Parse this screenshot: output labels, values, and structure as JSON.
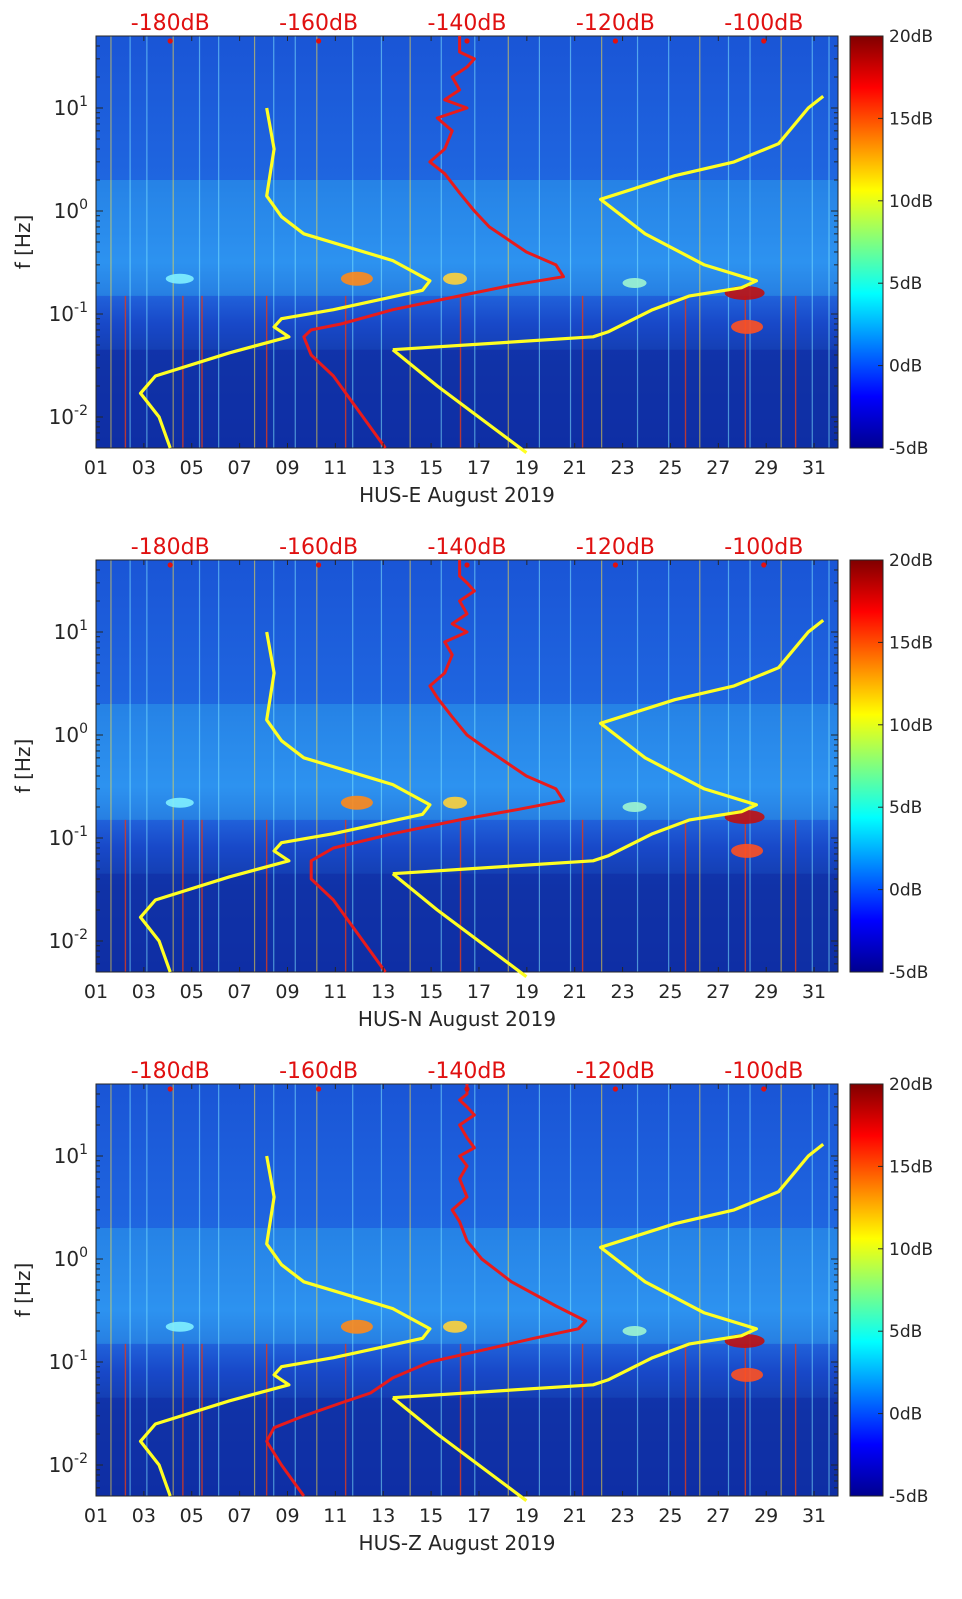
{
  "chart_data": [
    {
      "type": "heatmap",
      "xlabel": "HUS-E August 2019",
      "ylabel": "f [Hz]",
      "x_ticks": [
        "01",
        "03",
        "05",
        "07",
        "09",
        "11",
        "13",
        "15",
        "17",
        "19",
        "21",
        "23",
        "25",
        "27",
        "29",
        "31"
      ],
      "x_tick_days": [
        1,
        3,
        5,
        7,
        9,
        11,
        13,
        15,
        17,
        19,
        21,
        23,
        25,
        27,
        29,
        31
      ],
      "xlim_days": [
        1,
        32
      ],
      "y_scale": "log",
      "ylim_hz": [
        0.005,
        50
      ],
      "y_ticks": [
        {
          "label": "10",
          "exp": "1",
          "hz": 10
        },
        {
          "label": "10",
          "exp": "0",
          "hz": 1
        },
        {
          "label": "10",
          "exp": "-1",
          "hz": 0.1
        },
        {
          "label": "10",
          "exp": "-2",
          "hz": 0.01
        }
      ],
      "top_axis_ticks": [
        "-180dB",
        "-160dB",
        "-140dB",
        "-120dB",
        "-100dB"
      ],
      "top_axis_db": [
        -180,
        -160,
        -140,
        -120,
        -100
      ],
      "top_axis_range_db": [
        -190,
        -90
      ],
      "colorbar": {
        "ticks": [
          "20dB",
          "15dB",
          "10dB",
          "5dB",
          "0dB",
          "-5dB"
        ],
        "values": [
          20,
          15,
          10,
          5,
          0,
          -5
        ],
        "range": [
          -5,
          20
        ],
        "colormap": "jet"
      },
      "series": [
        {
          "color": "#ffff22",
          "points": [
            [
              -180,
              0.005
            ],
            [
              -181.5,
              0.01
            ],
            [
              -184,
              0.017
            ],
            [
              -182,
              0.025
            ],
            [
              -172,
              0.042
            ],
            [
              -164,
              0.06
            ],
            [
              -166,
              0.075
            ],
            [
              -165,
              0.09
            ],
            [
              -158,
              0.11
            ],
            [
              -146,
              0.17
            ],
            [
              -145,
              0.21
            ],
            [
              -150,
              0.33
            ],
            [
              -162,
              0.6
            ],
            [
              -165,
              0.88
            ],
            [
              -167,
              1.4
            ],
            [
              -166,
              4
            ],
            [
              -167,
              10
            ]
          ]
        },
        {
          "color": "#ffff22",
          "points": [
            [
              -150,
              0.045
            ],
            [
              -123,
              0.06
            ],
            [
              -121,
              0.067
            ],
            [
              -115,
              0.11
            ],
            [
              -110,
              0.15
            ],
            [
              -103,
              0.18
            ],
            [
              -101,
              0.21
            ],
            [
              -108,
              0.3
            ],
            [
              -116,
              0.6
            ],
            [
              -122,
              1.3
            ],
            [
              -112,
              2.2
            ],
            [
              -104,
              3
            ],
            [
              -98,
              4.5
            ],
            [
              -94,
              10
            ],
            [
              -92,
              13
            ]
          ]
        },
        {
          "color": "#ffff22",
          "points": [
            [
              -150,
              0.045
            ],
            [
              -144,
              0.02
            ],
            [
              -132,
              0.0045
            ]
          ]
        },
        {
          "color": "#e81b1b",
          "points": [
            [
              -151,
              0.005
            ],
            [
              -158,
              0.025
            ],
            [
              -161,
              0.04
            ],
            [
              -162,
              0.06
            ],
            [
              -161,
              0.07
            ],
            [
              -157,
              0.08
            ],
            [
              -150,
              0.11
            ],
            [
              -141,
              0.15
            ],
            [
              -134,
              0.19
            ],
            [
              -127,
              0.23
            ],
            [
              -128,
              0.3
            ],
            [
              -132,
              0.4
            ],
            [
              -137,
              0.7
            ],
            [
              -139,
              1.0
            ],
            [
              -141,
              1.5
            ],
            [
              -143,
              2.3
            ],
            [
              -145,
              3
            ],
            [
              -143,
              4
            ],
            [
              -142,
              6
            ],
            [
              -144,
              8
            ],
            [
              -140,
              10
            ],
            [
              -143,
              12
            ],
            [
              -141,
              15
            ],
            [
              -142,
              20
            ],
            [
              -140,
              25
            ],
            [
              -139,
              30
            ],
            [
              -141,
              35
            ],
            [
              -141,
              40
            ],
            [
              -141,
              50
            ]
          ]
        }
      ]
    },
    {
      "type": "heatmap",
      "xlabel": "HUS-N August 2019",
      "ylabel": "f [Hz]",
      "x_ticks": [
        "01",
        "03",
        "05",
        "07",
        "09",
        "11",
        "13",
        "15",
        "17",
        "19",
        "21",
        "23",
        "25",
        "27",
        "29",
        "31"
      ],
      "x_tick_days": [
        1,
        3,
        5,
        7,
        9,
        11,
        13,
        15,
        17,
        19,
        21,
        23,
        25,
        27,
        29,
        31
      ],
      "xlim_days": [
        1,
        32
      ],
      "y_scale": "log",
      "ylim_hz": [
        0.005,
        50
      ],
      "y_ticks": [
        {
          "label": "10",
          "exp": "1",
          "hz": 10
        },
        {
          "label": "10",
          "exp": "0",
          "hz": 1
        },
        {
          "label": "10",
          "exp": "-1",
          "hz": 0.1
        },
        {
          "label": "10",
          "exp": "-2",
          "hz": 0.01
        }
      ],
      "top_axis_ticks": [
        "-180dB",
        "-160dB",
        "-140dB",
        "-120dB",
        "-100dB"
      ],
      "top_axis_db": [
        -180,
        -160,
        -140,
        -120,
        -100
      ],
      "top_axis_range_db": [
        -190,
        -90
      ],
      "colorbar": {
        "ticks": [
          "20dB",
          "15dB",
          "10dB",
          "5dB",
          "0dB",
          "-5dB"
        ],
        "values": [
          20,
          15,
          10,
          5,
          0,
          -5
        ],
        "range": [
          -5,
          20
        ],
        "colormap": "jet"
      },
      "series": [
        {
          "color": "#ffff22",
          "points": [
            [
              -180,
              0.005
            ],
            [
              -181.5,
              0.01
            ],
            [
              -184,
              0.017
            ],
            [
              -182,
              0.025
            ],
            [
              -172,
              0.042
            ],
            [
              -164,
              0.06
            ],
            [
              -166,
              0.075
            ],
            [
              -165,
              0.09
            ],
            [
              -158,
              0.11
            ],
            [
              -146,
              0.17
            ],
            [
              -145,
              0.21
            ],
            [
              -150,
              0.33
            ],
            [
              -162,
              0.6
            ],
            [
              -165,
              0.88
            ],
            [
              -167,
              1.4
            ],
            [
              -166,
              4
            ],
            [
              -167,
              10
            ]
          ]
        },
        {
          "color": "#ffff22",
          "points": [
            [
              -150,
              0.045
            ],
            [
              -123,
              0.06
            ],
            [
              -121,
              0.067
            ],
            [
              -115,
              0.11
            ],
            [
              -110,
              0.15
            ],
            [
              -103,
              0.18
            ],
            [
              -101,
              0.21
            ],
            [
              -108,
              0.3
            ],
            [
              -116,
              0.6
            ],
            [
              -122,
              1.3
            ],
            [
              -112,
              2.2
            ],
            [
              -104,
              3
            ],
            [
              -98,
              4.5
            ],
            [
              -94,
              10
            ],
            [
              -92,
              13
            ]
          ]
        },
        {
          "color": "#ffff22",
          "points": [
            [
              -150,
              0.045
            ],
            [
              -144,
              0.02
            ],
            [
              -132,
              0.0045
            ]
          ]
        },
        {
          "color": "#e81b1b",
          "points": [
            [
              -151,
              0.005
            ],
            [
              -158,
              0.025
            ],
            [
              -161,
              0.04
            ],
            [
              -161,
              0.06
            ],
            [
              -158,
              0.08
            ],
            [
              -150,
              0.11
            ],
            [
              -141,
              0.15
            ],
            [
              -133,
              0.19
            ],
            [
              -127,
              0.23
            ],
            [
              -128,
              0.3
            ],
            [
              -132,
              0.4
            ],
            [
              -137,
              0.7
            ],
            [
              -140,
              1.0
            ],
            [
              -142,
              1.5
            ],
            [
              -144,
              2.3
            ],
            [
              -145,
              3
            ],
            [
              -143,
              4
            ],
            [
              -142,
              6
            ],
            [
              -143,
              8
            ],
            [
              -140,
              10
            ],
            [
              -142,
              12
            ],
            [
              -140,
              15
            ],
            [
              -141,
              20
            ],
            [
              -139,
              25
            ],
            [
              -140,
              30
            ],
            [
              -141,
              35
            ],
            [
              -141,
              40
            ],
            [
              -141,
              50
            ]
          ]
        }
      ]
    },
    {
      "type": "heatmap",
      "xlabel": "HUS-Z August 2019",
      "ylabel": "f [Hz]",
      "x_ticks": [
        "01",
        "03",
        "05",
        "07",
        "09",
        "11",
        "13",
        "15",
        "17",
        "19",
        "21",
        "23",
        "25",
        "27",
        "29",
        "31"
      ],
      "x_tick_days": [
        1,
        3,
        5,
        7,
        9,
        11,
        13,
        15,
        17,
        19,
        21,
        23,
        25,
        27,
        29,
        31
      ],
      "xlim_days": [
        1,
        32
      ],
      "y_scale": "log",
      "ylim_hz": [
        0.005,
        50
      ],
      "y_ticks": [
        {
          "label": "10",
          "exp": "1",
          "hz": 10
        },
        {
          "label": "10",
          "exp": "0",
          "hz": 1
        },
        {
          "label": "10",
          "exp": "-1",
          "hz": 0.1
        },
        {
          "label": "10",
          "exp": "-2",
          "hz": 0.01
        }
      ],
      "top_axis_ticks": [
        "-180dB",
        "-160dB",
        "-140dB",
        "-120dB",
        "-100dB"
      ],
      "top_axis_db": [
        -180,
        -160,
        -140,
        -120,
        -100
      ],
      "top_axis_range_db": [
        -190,
        -90
      ],
      "colorbar": {
        "ticks": [
          "20dB",
          "15dB",
          "10dB",
          "5dB",
          "0dB",
          "-5dB"
        ],
        "values": [
          20,
          15,
          10,
          5,
          0,
          -5
        ],
        "range": [
          -5,
          20
        ],
        "colormap": "jet"
      },
      "series": [
        {
          "color": "#ffff22",
          "points": [
            [
              -180,
              0.005
            ],
            [
              -181.5,
              0.01
            ],
            [
              -184,
              0.017
            ],
            [
              -182,
              0.025
            ],
            [
              -172,
              0.042
            ],
            [
              -164,
              0.06
            ],
            [
              -166,
              0.075
            ],
            [
              -165,
              0.09
            ],
            [
              -158,
              0.11
            ],
            [
              -146,
              0.17
            ],
            [
              -145,
              0.21
            ],
            [
              -150,
              0.33
            ],
            [
              -162,
              0.6
            ],
            [
              -165,
              0.88
            ],
            [
              -167,
              1.4
            ],
            [
              -166,
              4
            ],
            [
              -167,
              10
            ]
          ]
        },
        {
          "color": "#ffff22",
          "points": [
            [
              -150,
              0.045
            ],
            [
              -123,
              0.06
            ],
            [
              -121,
              0.067
            ],
            [
              -115,
              0.11
            ],
            [
              -110,
              0.15
            ],
            [
              -103,
              0.18
            ],
            [
              -101,
              0.21
            ],
            [
              -108,
              0.3
            ],
            [
              -116,
              0.6
            ],
            [
              -122,
              1.3
            ],
            [
              -112,
              2.2
            ],
            [
              -104,
              3
            ],
            [
              -98,
              4.5
            ],
            [
              -94,
              10
            ],
            [
              -92,
              13
            ]
          ]
        },
        {
          "color": "#ffff22",
          "points": [
            [
              -150,
              0.045
            ],
            [
              -144,
              0.02
            ],
            [
              -132,
              0.0045
            ]
          ]
        },
        {
          "color": "#e81b1b",
          "points": [
            [
              -162,
              0.005
            ],
            [
              -165,
              0.01
            ],
            [
              -167,
              0.017
            ],
            [
              -166,
              0.023
            ],
            [
              -162,
              0.03
            ],
            [
              -157,
              0.04
            ],
            [
              -153,
              0.05
            ],
            [
              -150,
              0.07
            ],
            [
              -145,
              0.1
            ],
            [
              -138,
              0.13
            ],
            [
              -131,
              0.17
            ],
            [
              -125,
              0.21
            ],
            [
              -124,
              0.25
            ],
            [
              -128,
              0.35
            ],
            [
              -134,
              0.6
            ],
            [
              -138,
              1.0
            ],
            [
              -140,
              1.5
            ],
            [
              -141,
              2.3
            ],
            [
              -142,
              3
            ],
            [
              -140,
              4
            ],
            [
              -141,
              6
            ],
            [
              -140,
              8
            ],
            [
              -141,
              10
            ],
            [
              -139,
              12
            ],
            [
              -140,
              15
            ],
            [
              -141,
              20
            ],
            [
              -139,
              25
            ],
            [
              -140,
              30
            ],
            [
              -141,
              35
            ],
            [
              -140,
              40
            ],
            [
              -140,
              50
            ]
          ]
        }
      ]
    }
  ]
}
